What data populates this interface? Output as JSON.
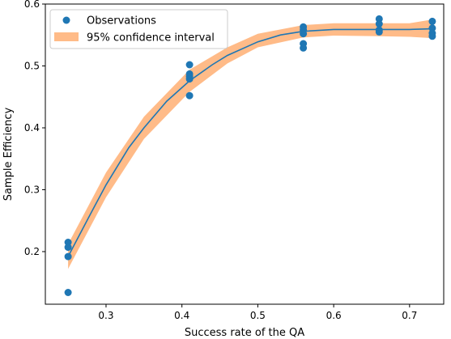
{
  "chart_data": {
    "type": "scatter",
    "title": "",
    "xlabel": "Success rate of the QA",
    "ylabel": "Sample Efficiency",
    "xlim": [
      0.22,
      0.745
    ],
    "ylim": [
      0.115,
      0.6
    ],
    "xticks": [
      0.3,
      0.4,
      0.5,
      0.6,
      0.7
    ],
    "xtick_labels": [
      "0.3",
      "0.4",
      "0.5",
      "0.6",
      "0.7"
    ],
    "yticks": [
      0.2,
      0.3,
      0.4,
      0.5,
      0.6
    ],
    "ytick_labels": [
      "0.2",
      "0.3",
      "0.4",
      "0.5",
      "0.6"
    ],
    "grid": false,
    "legend_position": "upper-left",
    "series": [
      {
        "name": "Observations",
        "kind": "scatter",
        "color": "#1f77b4",
        "x": [
          0.25,
          0.25,
          0.25,
          0.25,
          0.41,
          0.41,
          0.41,
          0.41,
          0.41,
          0.56,
          0.56,
          0.56,
          0.56,
          0.56,
          0.66,
          0.66,
          0.66,
          0.66,
          0.73,
          0.73,
          0.73,
          0.73
        ],
        "y": [
          0.215,
          0.207,
          0.192,
          0.134,
          0.502,
          0.487,
          0.483,
          0.479,
          0.452,
          0.563,
          0.558,
          0.552,
          0.536,
          0.529,
          0.576,
          0.568,
          0.558,
          0.555,
          0.572,
          0.561,
          0.553,
          0.548
        ]
      },
      {
        "name": "95% confidence interval",
        "kind": "band",
        "color": "#ffbb88",
        "x": [
          0.25,
          0.3,
          0.35,
          0.41,
          0.46,
          0.5,
          0.56,
          0.6,
          0.66,
          0.7,
          0.73
        ],
        "lower": [
          0.172,
          0.288,
          0.382,
          0.458,
          0.504,
          0.53,
          0.546,
          0.549,
          0.548,
          0.547,
          0.545
        ],
        "upper": [
          0.212,
          0.328,
          0.418,
          0.494,
          0.53,
          0.552,
          0.566,
          0.569,
          0.569,
          0.569,
          0.575
        ]
      },
      {
        "kind": "line",
        "color": "#1f77b4",
        "x": [
          0.25,
          0.28,
          0.3,
          0.33,
          0.35,
          0.38,
          0.41,
          0.44,
          0.46,
          0.5,
          0.53,
          0.56,
          0.6,
          0.63,
          0.66,
          0.7,
          0.73
        ],
        "y": [
          0.192,
          0.262,
          0.308,
          0.368,
          0.4,
          0.443,
          0.476,
          0.502,
          0.517,
          0.539,
          0.55,
          0.556,
          0.559,
          0.559,
          0.559,
          0.559,
          0.56
        ]
      }
    ]
  }
}
